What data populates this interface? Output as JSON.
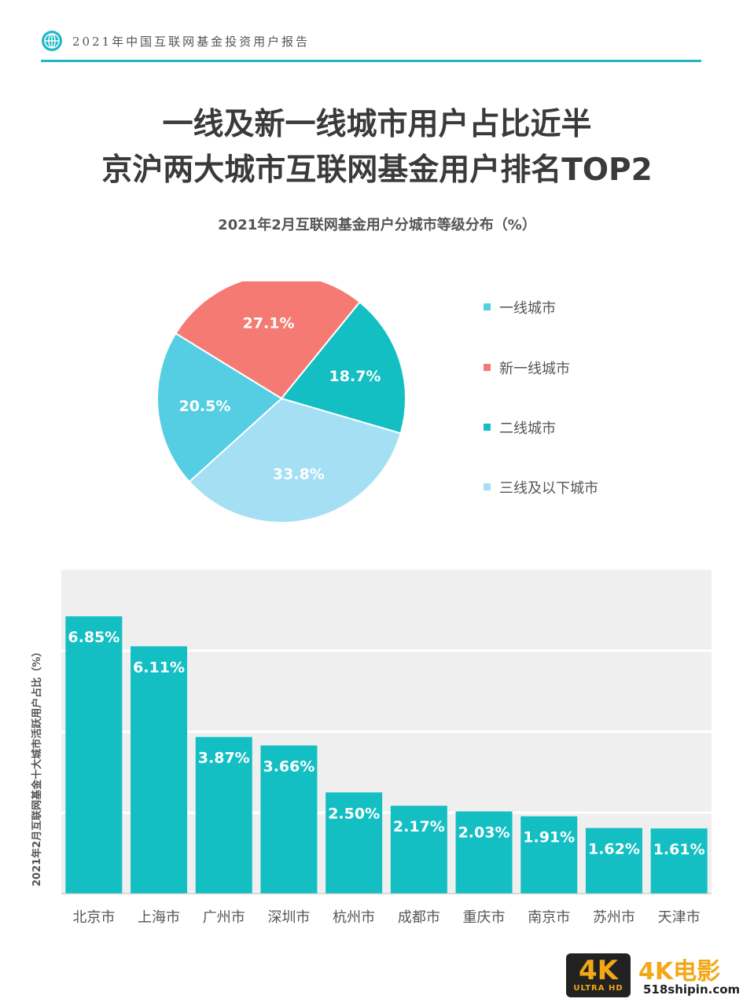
{
  "header": {
    "report_title": "2021年中国互联网基金投资用户报告",
    "icon": "globe-icon",
    "accent": "#21b7c5"
  },
  "headline": {
    "line1": "一线及新一线城市用户占比近半",
    "line2": "京沪两大城市互联网基金用户排名TOP2"
  },
  "chart_data": [
    {
      "type": "pie",
      "title": "2021年2月互联网基金用户分城市等级分布（%）",
      "legend_position": "right",
      "slices": [
        {
          "label": "一线城市",
          "value": 20.5,
          "display": "20.5%",
          "color": "#55cde3"
        },
        {
          "label": "新一线城市",
          "value": 27.1,
          "display": "27.1%",
          "color": "#f47a73"
        },
        {
          "label": "二线城市",
          "value": 18.7,
          "display": "18.7%",
          "color": "#13bfc2"
        },
        {
          "label": "三线及以下城市",
          "value": 33.8,
          "display": "33.8%",
          "color": "#a4dff4"
        }
      ]
    },
    {
      "type": "bar",
      "ylabel": "2021年2月互联网基金十大城市活跃用户占比（%）",
      "xlabel": "",
      "ylim": [
        0,
        8
      ],
      "grid": true,
      "bar_color": "#13bfc2",
      "categories": [
        "北京市",
        "上海市",
        "广州市",
        "深圳市",
        "杭州市",
        "成都市",
        "重庆市",
        "南京市",
        "苏州市",
        "天津市"
      ],
      "values": [
        6.85,
        6.11,
        3.87,
        3.66,
        2.5,
        2.17,
        2.03,
        1.91,
        1.62,
        1.61
      ],
      "value_labels": [
        "6.85%",
        "6.11%",
        "3.87%",
        "3.66%",
        "2.50%",
        "2.17%",
        "2.03%",
        "1.91%",
        "1.62%",
        "1.61%"
      ]
    }
  ],
  "watermark": {
    "badge_big": "4K",
    "badge_small": "ULTRA HD",
    "brand": "4K电影",
    "site": "518shipin.com"
  }
}
